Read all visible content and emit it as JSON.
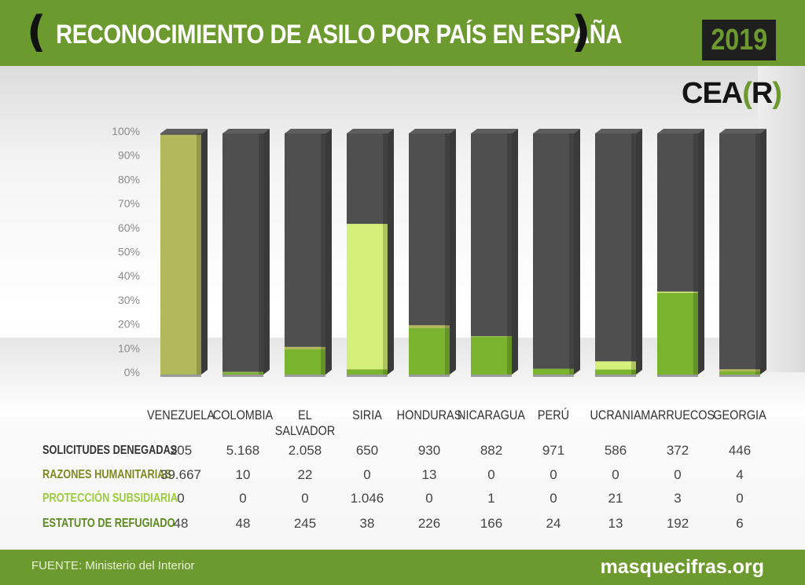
{
  "header": {
    "title": "RECONOCIMIENTO DE ASILO POR PAÍS EN ESPAÑA",
    "bracket_left": "(",
    "bracket_right": ")",
    "year": "2019"
  },
  "logo": {
    "main": "CEA",
    "bracket_open": "(",
    "letter": "R",
    "bracket_close": ")"
  },
  "footer": {
    "source": "FUENTE: Ministerio del Interior",
    "site": "masquecifras.org"
  },
  "colors": {
    "brand_green": "#6d9a2e",
    "denied": "#4f4f4f",
    "humanitarian": "#b3b85a",
    "subsidiary": "#d4ef7a",
    "refugee": "#7ab32e"
  },
  "chart_data": {
    "type": "bar",
    "stacked": true,
    "normalized": true,
    "ylim": [
      0,
      100
    ],
    "yticks": [
      "0%",
      "10%",
      "20%",
      "30%",
      "40%",
      "50%",
      "60%",
      "70%",
      "80%",
      "90%",
      "100%"
    ],
    "categories": [
      "VENEZUELA",
      "COLOMBIA",
      "EL SALVADOR",
      "SIRIA",
      "HONDURAS",
      "NICARAGUA",
      "PERÚ",
      "UCRANIA",
      "MARRUECOS",
      "GEORGIA"
    ],
    "series": [
      {
        "name": "ESTATUTO DE REFUGIADO",
        "color": "#7ab32e",
        "label_color": "#5c8a1e",
        "values": [
          "48",
          "48",
          "245",
          "38",
          "226",
          "166",
          "24",
          "13",
          "192",
          "6"
        ]
      },
      {
        "name": "PROTECCIÓN SUBSIDIARIA",
        "color": "#d4ef7a",
        "label_color": "#9ccc3a",
        "values": [
          "0",
          "0",
          "0",
          "1.046",
          "0",
          "1",
          "0",
          "21",
          "3",
          "0"
        ]
      },
      {
        "name": "RAZONES HUMANITARIAS",
        "color": "#b3b85a",
        "label_color": "#7d8a1f",
        "values": [
          "39.667",
          "10",
          "22",
          "0",
          "13",
          "0",
          "0",
          "0",
          "0",
          "4"
        ]
      },
      {
        "name": "SOLICITUDES DENEGADAS",
        "color": "#4f4f4f",
        "label_color": "#333333",
        "values": [
          "205",
          "5.168",
          "2.058",
          "650",
          "930",
          "882",
          "971",
          "586",
          "372",
          "446"
        ]
      }
    ]
  }
}
